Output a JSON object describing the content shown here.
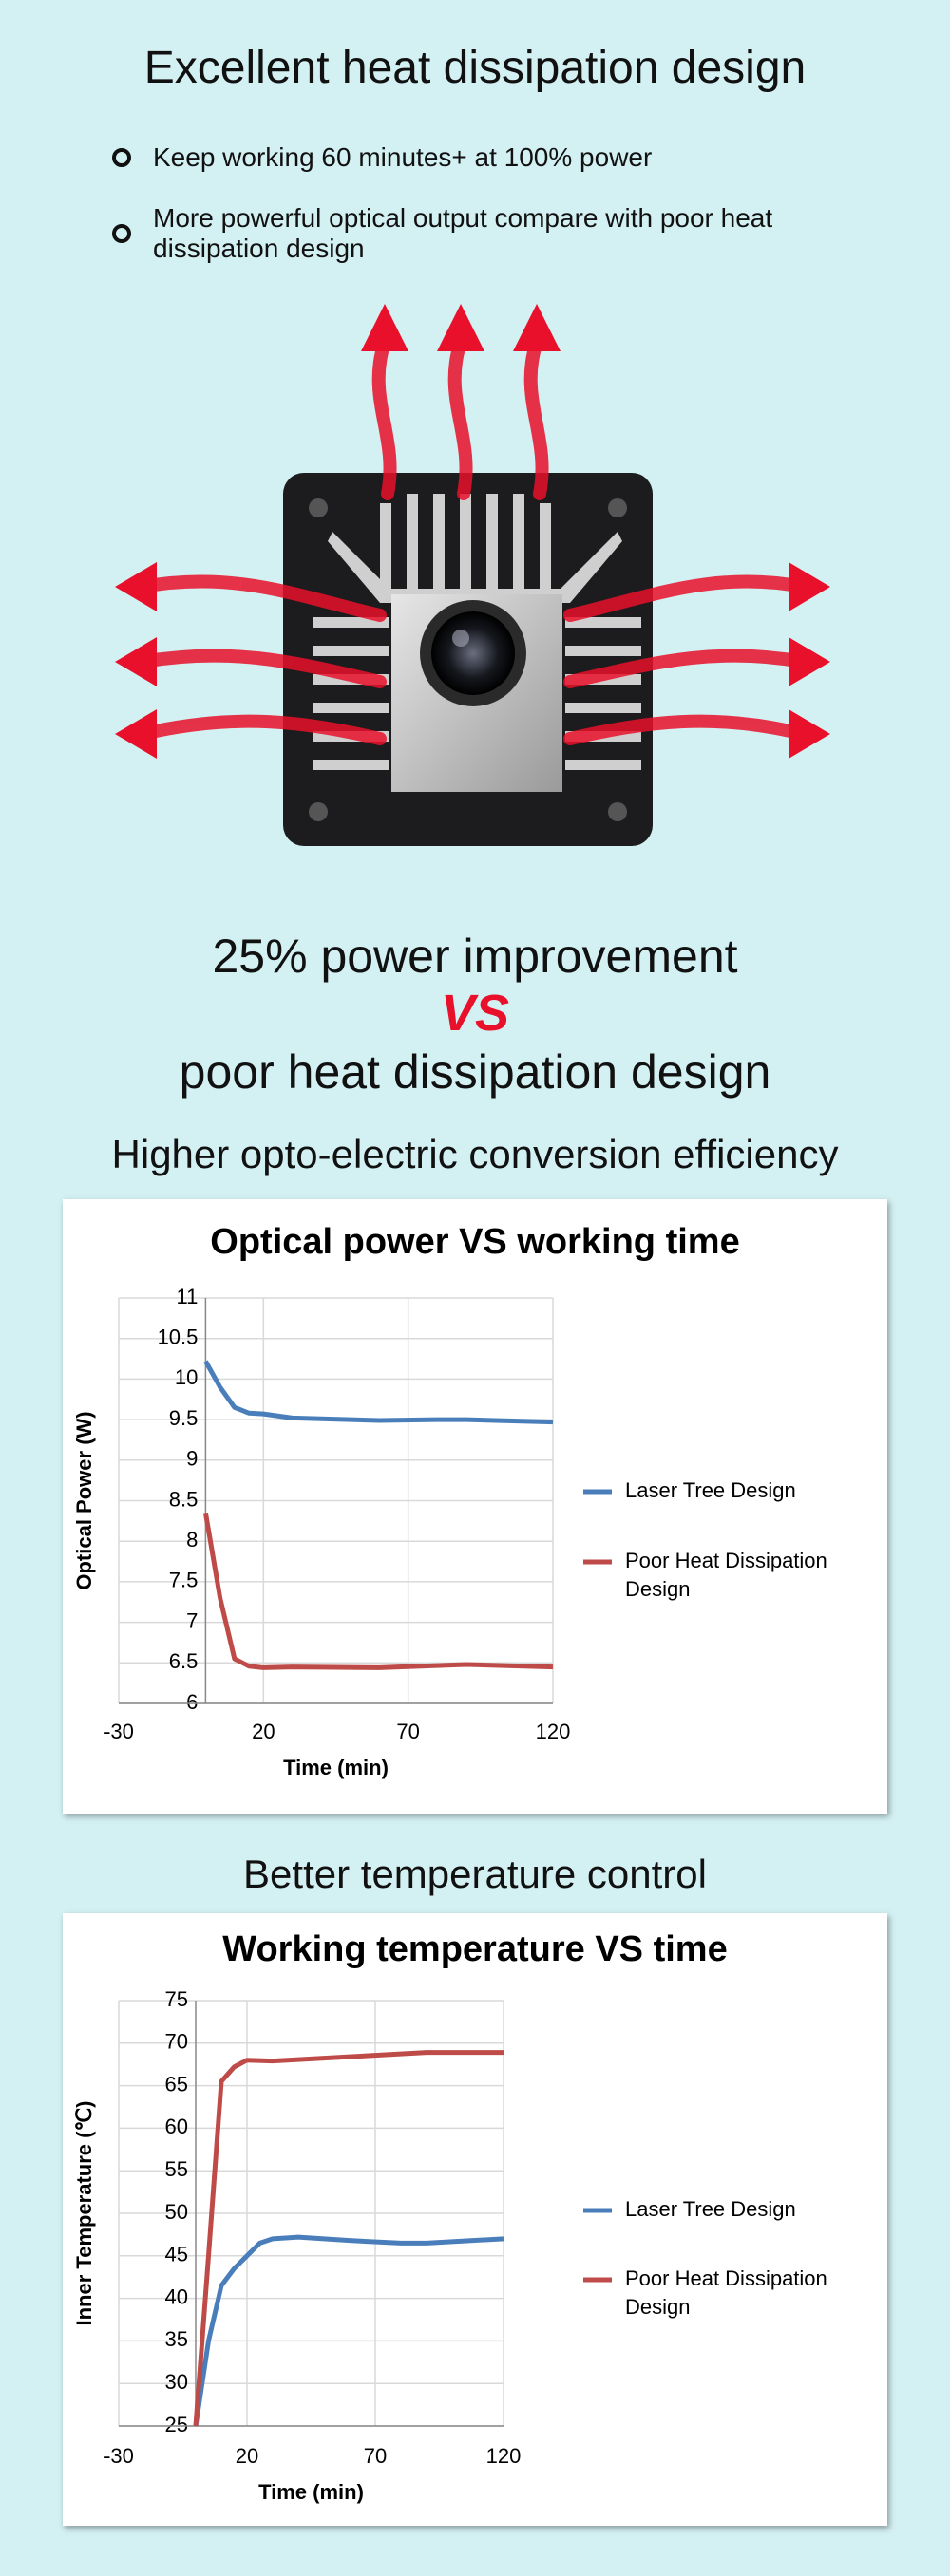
{
  "title": "Excellent heat dissipation design",
  "bullets": [
    "Keep working 60 minutes+ at 100% power",
    "More powerful optical output compare with poor heat dissipation design"
  ],
  "headline": {
    "line1": "25% power improvement",
    "vs": "VS",
    "line2": "poor heat dissipation design"
  },
  "sections": [
    "Higher opto-electric conversion efficiency",
    "Better temperature control"
  ],
  "chart_data": [
    {
      "type": "line",
      "title": "Optical power VS working time",
      "x_label": "Time (min)",
      "y_label": "Optical Power (W)",
      "xlim": [
        -30,
        120
      ],
      "xticks": [
        -30,
        20,
        70,
        120
      ],
      "ylim": [
        6,
        11
      ],
      "yticks": [
        6,
        6.5,
        7,
        7.5,
        8,
        8.5,
        9,
        9.5,
        10,
        10.5,
        11
      ],
      "grid": true,
      "legend": "right",
      "series": [
        {
          "name": "Laser Tree Design",
          "color": "#4a7ebb",
          "x": [
            0,
            5,
            10,
            15,
            20,
            30,
            40,
            60,
            80,
            90,
            100,
            120
          ],
          "values": [
            10.22,
            9.9,
            9.65,
            9.58,
            9.57,
            9.52,
            9.51,
            9.49,
            9.5,
            9.5,
            9.49,
            9.47
          ]
        },
        {
          "name": "Poor Heat Dissipation Design",
          "color": "#be4b48",
          "x": [
            0,
            5,
            10,
            15,
            20,
            30,
            60,
            90,
            120
          ],
          "values": [
            8.35,
            7.3,
            6.55,
            6.46,
            6.44,
            6.45,
            6.44,
            6.48,
            6.45
          ]
        }
      ]
    },
    {
      "type": "line",
      "title": "Working temperature VS  time",
      "x_label": "Time (min)",
      "y_label": "Inner Temperature (℃)",
      "xlim": [
        -30,
        120
      ],
      "xticks": [
        -30,
        20,
        70,
        120
      ],
      "ylim": [
        25,
        75
      ],
      "yticks": [
        25,
        30,
        35,
        40,
        45,
        50,
        55,
        60,
        65,
        70,
        75
      ],
      "grid": true,
      "legend": "right",
      "series": [
        {
          "name": "Laser Tree Design",
          "color": "#4a7ebb",
          "x": [
            0,
            5,
            10,
            15,
            20,
            25,
            30,
            40,
            60,
            80,
            90,
            120
          ],
          "values": [
            25,
            35,
            41.5,
            43.5,
            45,
            46.5,
            47,
            47.2,
            46.8,
            46.5,
            46.5,
            47
          ]
        },
        {
          "name": "Poor Heat Dissipation Design",
          "color": "#be4b48",
          "x": [
            0,
            5,
            10,
            15,
            20,
            30,
            60,
            90,
            120
          ],
          "values": [
            25,
            45,
            65.5,
            67.2,
            68,
            67.9,
            68.4,
            68.9,
            68.9
          ]
        }
      ]
    }
  ]
}
